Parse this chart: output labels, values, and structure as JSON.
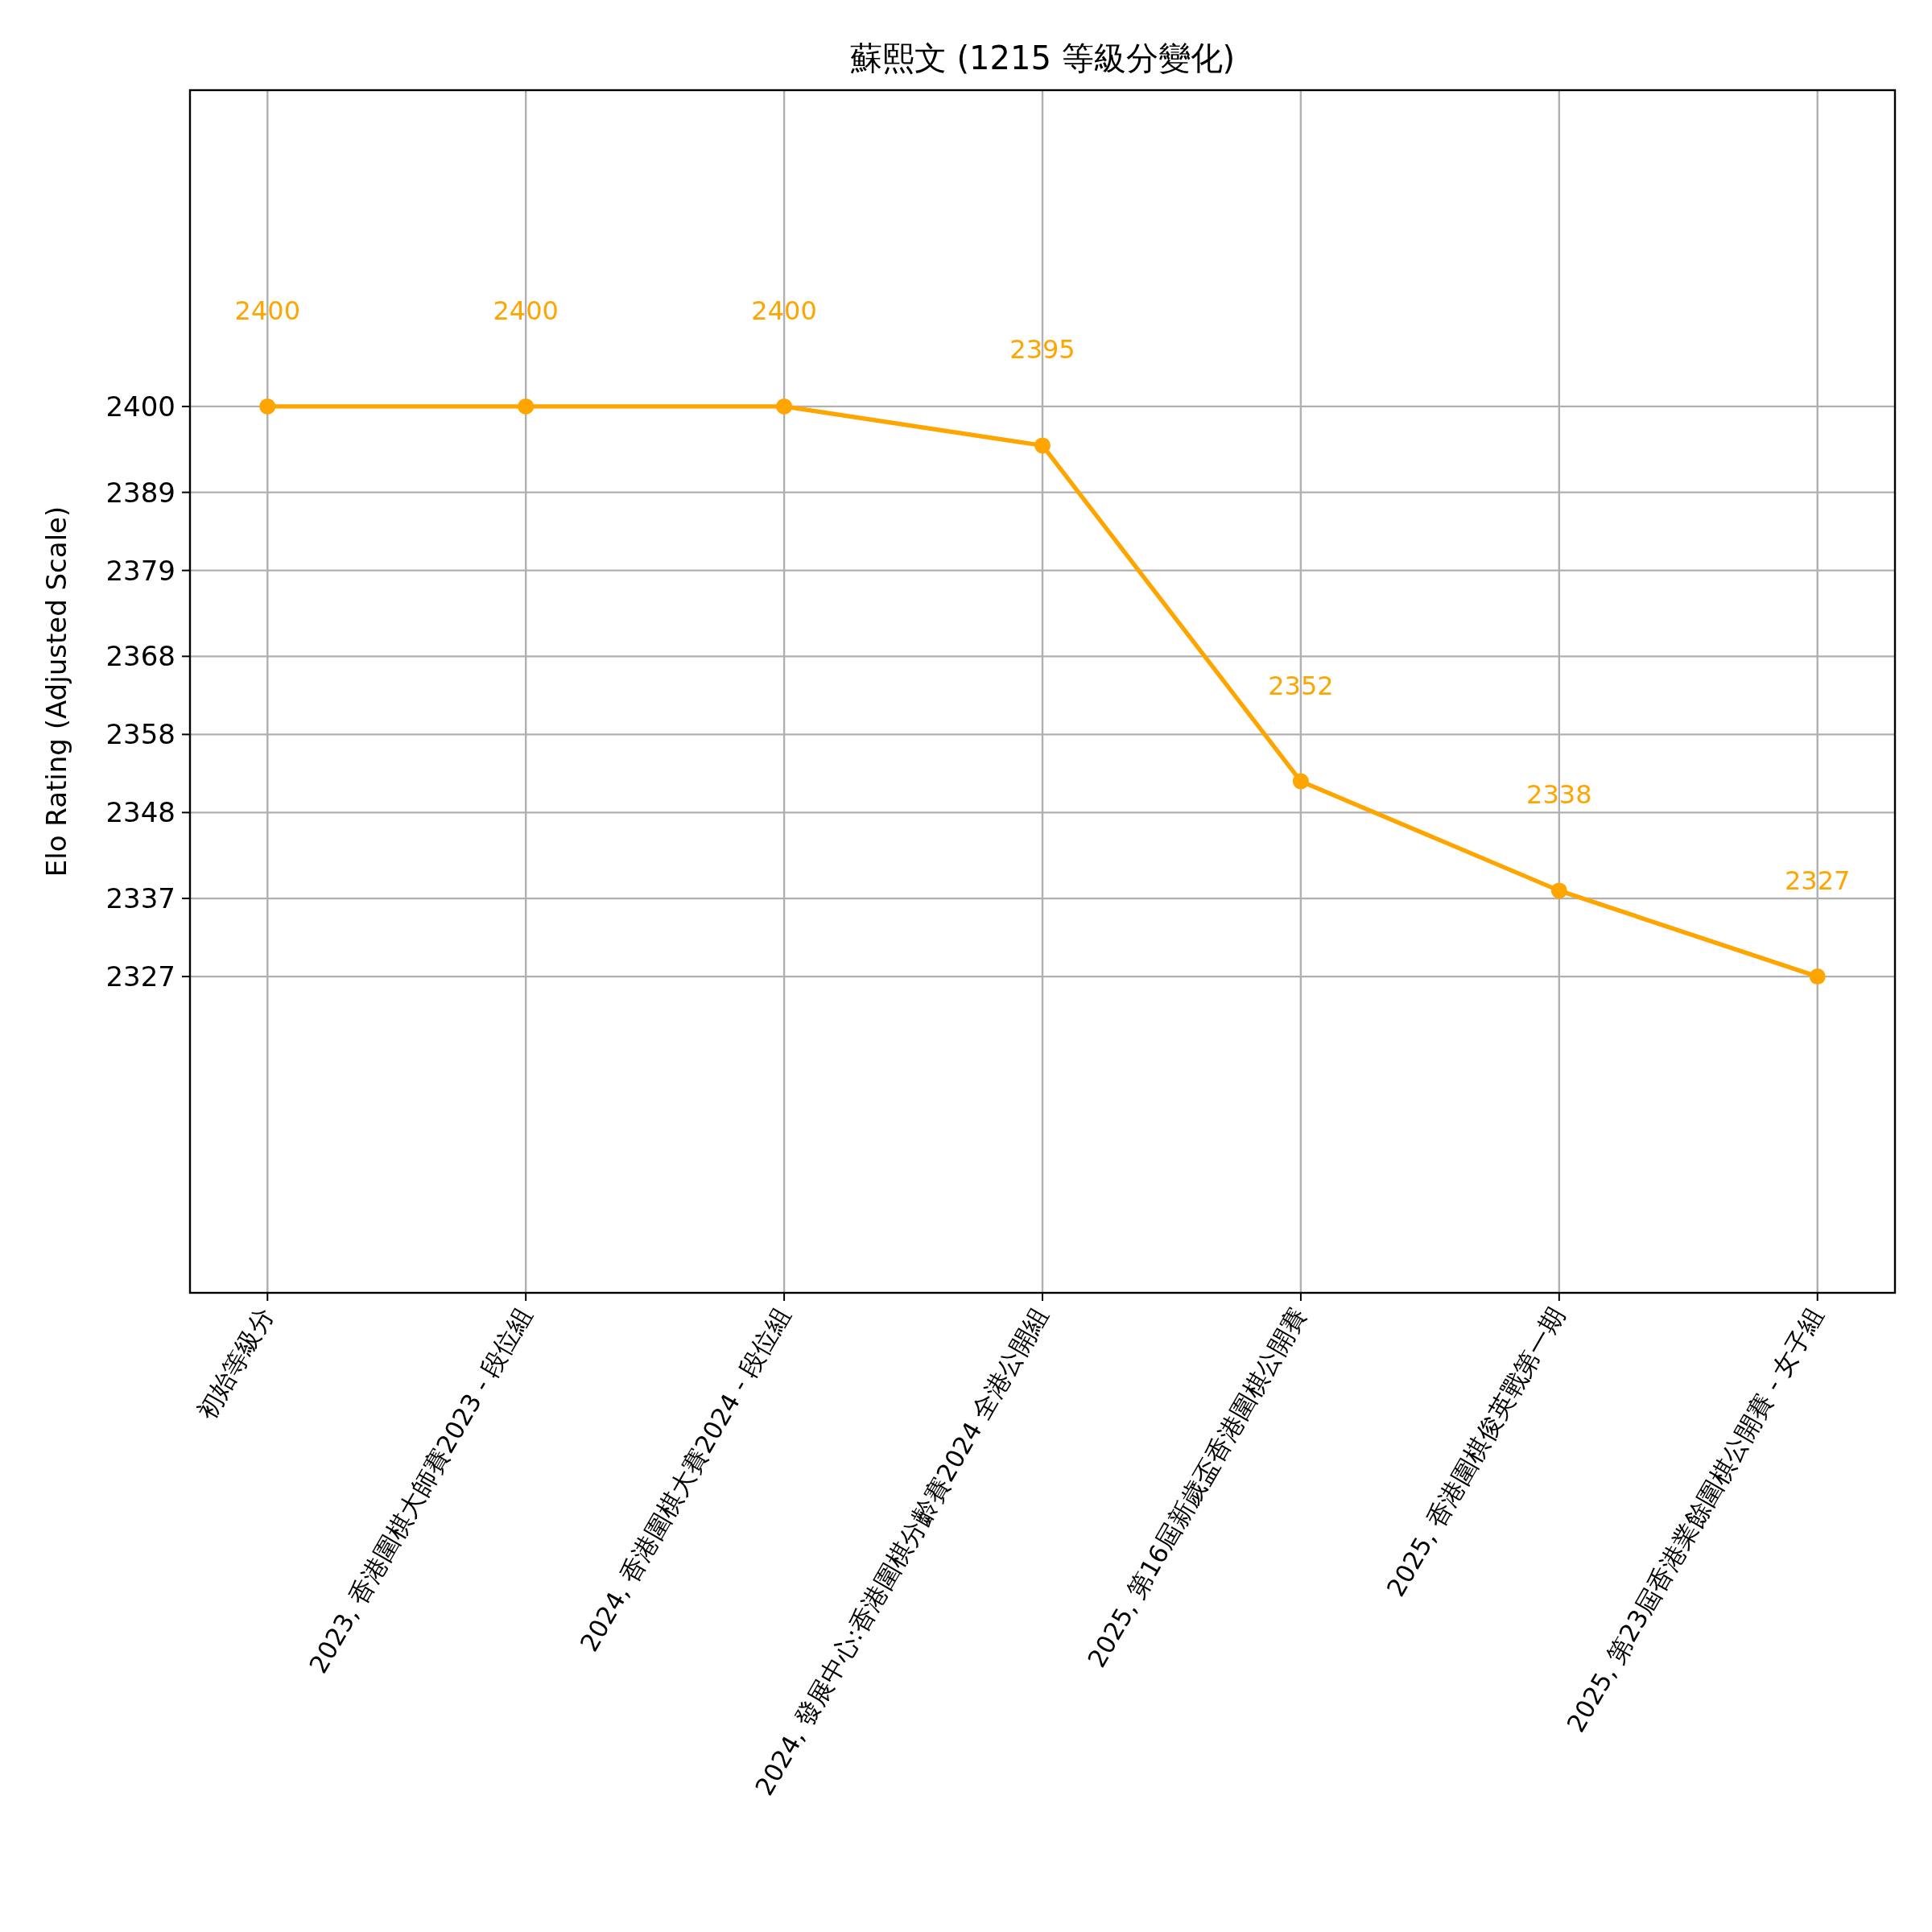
{
  "chart_data": {
    "type": "line",
    "title": "蘇熙文 (1215 等級分變化)",
    "ylabel": "Elo Rating (Adjusted Scale)",
    "categories": [
      "初始等級分",
      "2023, 香港圍棋大師賽2023 - 段位組",
      "2024, 香港圍棋大賽2024 - 段位組",
      "2024, 發展中心:香港圍棋分齡賽2024 全港公開組",
      "2025, 第16屆新歲盃香港圍棋公開賽",
      "2025, 香港圍棋俊英戰第一期",
      "2025, 第23屆香港業餘圍棋公開賽 - 女子組"
    ],
    "series": [
      {
        "color": "#ffa500",
        "values": [
          2400,
          2400,
          2400,
          2395,
          2352,
          2338,
          2327
        ]
      }
    ],
    "ylim": [
      2286.5,
      2440.5
    ],
    "yticks": [
      2327,
      2337,
      2348,
      2358,
      2368,
      2379,
      2389,
      2400
    ],
    "grid": true,
    "marker": "circle",
    "line_style": "solid",
    "data_labels": true
  }
}
